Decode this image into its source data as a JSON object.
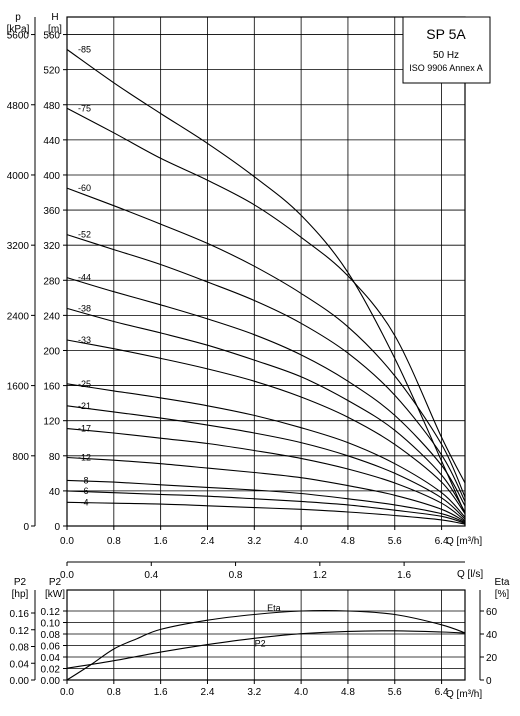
{
  "legend_box": {
    "model": "SP 5A",
    "frequency": "50 Hz",
    "standard": "ISO 9906 Annex A"
  },
  "chart_data": [
    {
      "type": "line",
      "name": "head",
      "x_axis": {
        "label": "Q [m³/h]",
        "range": [
          0,
          6.8
        ],
        "ticks": [
          "0.0",
          "0.8",
          "1.6",
          "2.4",
          "3.2",
          "4.0",
          "4.8",
          "5.6",
          "6.4"
        ]
      },
      "y_axis_left": {
        "label": "p",
        "unit": "[kPa]",
        "range": [
          0,
          5600
        ],
        "ticks": [
          "0",
          "800",
          "1600",
          "2400",
          "3200",
          "4000",
          "4800",
          "5600"
        ]
      },
      "y_axis_inner": {
        "label": "H",
        "unit": "[m]",
        "range": [
          0,
          580
        ],
        "ticks": [
          "0",
          "40",
          "80",
          "120",
          "160",
          "200",
          "240",
          "280",
          "320",
          "360",
          "400",
          "440",
          "480",
          "520",
          "560"
        ]
      },
      "grid": true,
      "series": [
        {
          "name": "-85",
          "x": [
            0,
            0.8,
            1.6,
            2.4,
            3.2,
            4.0,
            4.8,
            5.6,
            6.4,
            6.8
          ],
          "y": [
            543,
            505,
            470,
            436,
            398,
            354,
            289,
            191,
            74,
            14
          ]
        },
        {
          "name": "-75",
          "x": [
            0,
            0.8,
            1.6,
            2.4,
            3.2,
            4.0,
            4.8,
            5.6,
            6.4,
            6.8
          ],
          "y": [
            476,
            448,
            419,
            394,
            366,
            329,
            285,
            217,
            101,
            49
          ]
        },
        {
          "name": "-60",
          "x": [
            0,
            0.8,
            1.6,
            2.4,
            3.2,
            4.0,
            4.8,
            5.6,
            6.4,
            6.8
          ],
          "y": [
            385,
            365,
            344,
            322,
            296,
            265,
            227,
            171,
            93,
            33
          ]
        },
        {
          "name": "-52",
          "x": [
            0,
            0.8,
            1.6,
            2.4,
            3.2,
            4.0,
            4.8,
            5.6,
            6.4,
            6.8
          ],
          "y": [
            332,
            315,
            298,
            278,
            257,
            231,
            197,
            149,
            81,
            28
          ]
        },
        {
          "name": "-44",
          "x": [
            0,
            0.8,
            1.6,
            2.4,
            3.2,
            4.0,
            4.8,
            5.6,
            6.4,
            6.8
          ],
          "y": [
            283,
            267,
            252,
            236,
            218,
            195,
            165,
            126,
            69,
            23
          ]
        },
        {
          "name": "-38",
          "x": [
            0,
            0.8,
            1.6,
            2.4,
            3.2,
            4.0,
            4.8,
            5.6,
            6.4,
            6.8
          ],
          "y": [
            248,
            233,
            220,
            206,
            189,
            170,
            143,
            109,
            58,
            16
          ]
        },
        {
          "name": "-33",
          "x": [
            0,
            0.8,
            1.6,
            2.4,
            3.2,
            4.0,
            4.8,
            5.6,
            6.4,
            6.8
          ],
          "y": [
            212,
            202,
            191,
            179,
            165,
            147,
            124,
            93,
            50,
            14
          ]
        },
        {
          "name": "-25",
          "x": [
            0,
            0.8,
            1.6,
            2.4,
            3.2,
            4.0,
            4.8,
            5.6,
            6.4,
            6.8
          ],
          "y": [
            162,
            154,
            146,
            137,
            126,
            112,
            95,
            71,
            38,
            10
          ]
        },
        {
          "name": "-21",
          "x": [
            0,
            0.8,
            1.6,
            2.4,
            3.2,
            4.0,
            4.8,
            5.6,
            6.4,
            6.8
          ],
          "y": [
            137,
            130,
            123,
            115,
            106,
            95,
            80,
            60,
            32,
            8
          ]
        },
        {
          "name": "-17",
          "x": [
            0,
            0.8,
            1.6,
            2.4,
            3.2,
            4.0,
            4.8,
            5.6,
            6.4,
            6.8
          ],
          "y": [
            111,
            106,
            100,
            94,
            86,
            77,
            65,
            49,
            26,
            6
          ]
        },
        {
          "name": "-12",
          "x": [
            0,
            0.8,
            1.6,
            2.4,
            3.2,
            4.0,
            4.8,
            5.6,
            6.4,
            6.8
          ],
          "y": [
            78,
            75,
            71,
            66,
            61,
            55,
            46,
            35,
            19,
            5
          ]
        },
        {
          "name": "-8",
          "x": [
            0,
            0.8,
            1.6,
            2.4,
            3.2,
            4.0,
            4.8,
            5.6,
            6.4,
            6.8
          ],
          "y": [
            52,
            50,
            47,
            44,
            41,
            37,
            31,
            24,
            14,
            4
          ]
        },
        {
          "name": "-6",
          "x": [
            0,
            0.8,
            1.6,
            2.4,
            3.2,
            4.0,
            4.8,
            5.6,
            6.4,
            6.8
          ],
          "y": [
            40,
            38,
            36,
            34,
            31,
            28,
            24,
            18,
            11,
            3
          ]
        },
        {
          "name": "-4",
          "x": [
            0,
            0.8,
            1.6,
            2.4,
            3.2,
            4.0,
            4.8,
            5.6,
            6.4,
            6.8
          ],
          "y": [
            27,
            26,
            25,
            23,
            21,
            19,
            16,
            12,
            7,
            2
          ]
        }
      ]
    },
    {
      "type": "line",
      "name": "power-efficiency",
      "x_axis": {
        "label": "Q [m³/h]",
        "range": [
          0,
          6.8
        ],
        "ticks": [
          "0.0",
          "0.8",
          "1.6",
          "2.4",
          "3.2",
          "4.0",
          "4.8",
          "5.6",
          "6.4"
        ]
      },
      "x_axis_top": {
        "label": "Q [l/s]",
        "range": [
          0,
          1.889
        ],
        "ticks": [
          "0.0",
          "0.4",
          "0.8",
          "1.2",
          "1.6"
        ]
      },
      "y_axis_left": {
        "label": "P2",
        "unit": "[hp]",
        "range": [
          0,
          0.16
        ],
        "ticks": [
          "0.00",
          "0.04",
          "0.08",
          "0.12",
          "0.16"
        ]
      },
      "y_axis_inner": {
        "label": "P2",
        "unit": "[kW]",
        "range": [
          0,
          0.12
        ],
        "ticks": [
          "0.00",
          "0.02",
          "0.04",
          "0.06",
          "0.08",
          "0.10",
          "0.12"
        ]
      },
      "y_axis_right": {
        "label": "Eta",
        "unit": "[%]",
        "range": [
          0,
          60
        ],
        "ticks": [
          "0",
          "20",
          "40",
          "60"
        ]
      },
      "grid": true,
      "series": [
        {
          "name": "Eta",
          "axis": "right",
          "x": [
            0,
            0.4,
            0.8,
            1.2,
            1.6,
            2.4,
            3.2,
            4.0,
            4.8,
            5.6,
            6.4,
            6.8
          ],
          "y": [
            0,
            13,
            27,
            36,
            44,
            52,
            57,
            60,
            60,
            57,
            48,
            41
          ]
        },
        {
          "name": "P2",
          "axis": "inner",
          "x": [
            0,
            0.8,
            1.6,
            2.4,
            3.2,
            4.0,
            4.8,
            5.6,
            6.4,
            6.8
          ],
          "y": [
            0.0205,
            0.0335,
            0.0485,
            0.0615,
            0.0725,
            0.0805,
            0.0845,
            0.0855,
            0.0835,
            0.0815
          ]
        }
      ]
    }
  ]
}
